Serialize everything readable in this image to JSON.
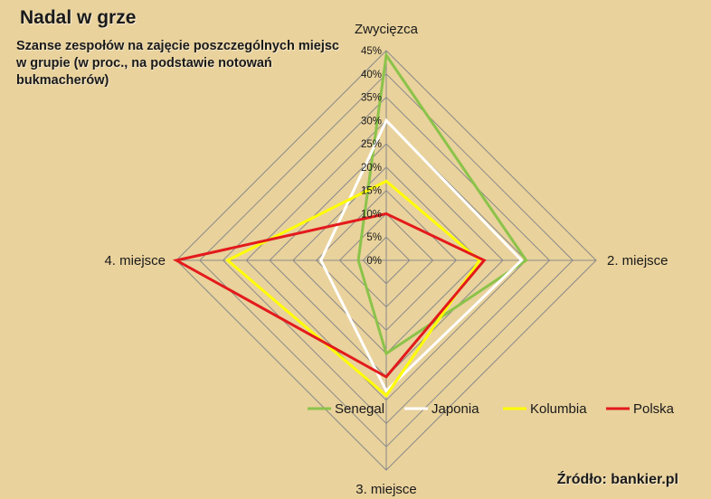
{
  "title": "Nadal w grze",
  "subtitle": "Szanse zespołów na zajęcie poszczególnych miejsc w grupie (w proc., na podstawie notowań bukmacherów)",
  "source": "Źródło: bankier.pl",
  "colors": {
    "background": "#e9d29c",
    "grid": "#8a8a8a"
  },
  "chart_data": {
    "type": "radar",
    "title": "Nadal w grze",
    "axes": [
      "Zwycięzca",
      "2. miejsce",
      "3. miejsce",
      "4. miejsce"
    ],
    "range": [
      0,
      45
    ],
    "tick_labels": [
      "0%",
      "5%",
      "10%",
      "15%",
      "20%",
      "25%",
      "30%",
      "35%",
      "40%",
      "45%"
    ],
    "grid": true,
    "legend_position": "bottom",
    "series": [
      {
        "name": "Senegal",
        "color": "#8bc34a",
        "values": [
          44,
          30,
          20,
          6
        ]
      },
      {
        "name": "Japonia",
        "color": "#ffffff",
        "values": [
          30,
          29,
          28,
          14
        ]
      },
      {
        "name": "Kolumbia",
        "color": "#ffff00",
        "values": [
          17,
          20,
          29,
          34
        ]
      },
      {
        "name": "Polska",
        "color": "#e31a1c",
        "values": [
          10,
          21,
          25,
          45
        ]
      }
    ]
  }
}
